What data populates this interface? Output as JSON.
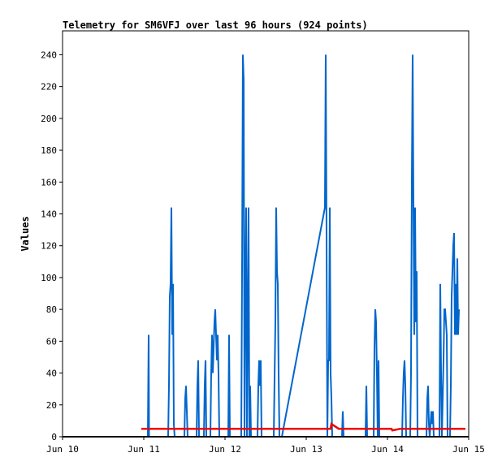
{
  "chart_data": {
    "type": "line",
    "title": "Telemetry for SM6VFJ over last 96 hours (924 points)",
    "xlabel": "",
    "ylabel": "Values",
    "grid": false,
    "legend": "none",
    "x_domain": [
      0,
      5
    ],
    "ylim": [
      0,
      255
    ],
    "x_ticks": [
      {
        "x": 0,
        "label": "Jun 10"
      },
      {
        "x": 1,
        "label": "Jun 11"
      },
      {
        "x": 2,
        "label": "Jun 12"
      },
      {
        "x": 3,
        "label": "Jun 13"
      },
      {
        "x": 4,
        "label": "Jun 14"
      },
      {
        "x": 5,
        "label": "Jun 15"
      }
    ],
    "y_ticks": [
      0,
      20,
      40,
      60,
      80,
      100,
      120,
      140,
      160,
      180,
      200,
      220,
      240
    ],
    "series": [
      {
        "color": "#0066cc",
        "points": [
          [
            1.0,
            0
          ],
          [
            1.05,
            0
          ],
          [
            1.06,
            64
          ],
          [
            1.065,
            0
          ],
          [
            1.3,
            0
          ],
          [
            1.31,
            32
          ],
          [
            1.32,
            88
          ],
          [
            1.33,
            96
          ],
          [
            1.34,
            144
          ],
          [
            1.35,
            64
          ],
          [
            1.36,
            96
          ],
          [
            1.37,
            8
          ],
          [
            1.38,
            0
          ],
          [
            1.5,
            0
          ],
          [
            1.51,
            24
          ],
          [
            1.52,
            32
          ],
          [
            1.53,
            16
          ],
          [
            1.54,
            0
          ],
          [
            1.65,
            0
          ],
          [
            1.66,
            32
          ],
          [
            1.67,
            48
          ],
          [
            1.68,
            0
          ],
          [
            1.74,
            0
          ],
          [
            1.75,
            32
          ],
          [
            1.76,
            48
          ],
          [
            1.77,
            0
          ],
          [
            1.82,
            0
          ],
          [
            1.83,
            40
          ],
          [
            1.84,
            64
          ],
          [
            1.85,
            40
          ],
          [
            1.86,
            56
          ],
          [
            1.87,
            72
          ],
          [
            1.88,
            80
          ],
          [
            1.89,
            64
          ],
          [
            1.9,
            48
          ],
          [
            1.91,
            64
          ],
          [
            1.92,
            40
          ],
          [
            1.93,
            0
          ],
          [
            2.04,
            0
          ],
          [
            2.05,
            64
          ],
          [
            2.06,
            0
          ],
          [
            2.2,
            0
          ],
          [
            2.21,
            104
          ],
          [
            2.22,
            240
          ],
          [
            2.23,
            224
          ],
          [
            2.24,
            0
          ],
          [
            2.25,
            96
          ],
          [
            2.26,
            144
          ],
          [
            2.27,
            0
          ],
          [
            2.28,
            72
          ],
          [
            2.29,
            144
          ],
          [
            2.3,
            0
          ],
          [
            2.31,
            32
          ],
          [
            2.32,
            0
          ],
          [
            2.4,
            0
          ],
          [
            2.41,
            32
          ],
          [
            2.42,
            48
          ],
          [
            2.43,
            32
          ],
          [
            2.44,
            48
          ],
          [
            2.45,
            0
          ],
          [
            2.6,
            0
          ],
          [
            2.62,
            72
          ],
          [
            2.63,
            144
          ],
          [
            2.64,
            104
          ],
          [
            2.65,
            96
          ],
          [
            2.66,
            40
          ],
          [
            2.67,
            0
          ],
          [
            2.7,
            0
          ],
          [
            3.23,
            144
          ],
          [
            3.24,
            240
          ],
          [
            3.25,
            128
          ],
          [
            3.26,
            0
          ],
          [
            3.27,
            48
          ],
          [
            3.28,
            48
          ],
          [
            3.29,
            144
          ],
          [
            3.3,
            40
          ],
          [
            3.31,
            24
          ],
          [
            3.32,
            0
          ],
          [
            3.44,
            0
          ],
          [
            3.45,
            16
          ],
          [
            3.46,
            0
          ],
          [
            3.73,
            0
          ],
          [
            3.74,
            32
          ],
          [
            3.75,
            0
          ],
          [
            3.83,
            0
          ],
          [
            3.84,
            56
          ],
          [
            3.85,
            80
          ],
          [
            3.86,
            72
          ],
          [
            3.87,
            40
          ],
          [
            3.88,
            0
          ],
          [
            3.89,
            48
          ],
          [
            3.9,
            0
          ],
          [
            4.18,
            0
          ],
          [
            4.19,
            24
          ],
          [
            4.2,
            40
          ],
          [
            4.21,
            48
          ],
          [
            4.22,
            32
          ],
          [
            4.23,
            0
          ],
          [
            4.28,
            0
          ],
          [
            4.29,
            40
          ],
          [
            4.3,
            160
          ],
          [
            4.31,
            240
          ],
          [
            4.32,
            144
          ],
          [
            4.33,
            64
          ],
          [
            4.34,
            144
          ],
          [
            4.35,
            72
          ],
          [
            4.36,
            104
          ],
          [
            4.37,
            0
          ],
          [
            4.48,
            0
          ],
          [
            4.49,
            24
          ],
          [
            4.5,
            32
          ],
          [
            4.51,
            8
          ],
          [
            4.52,
            0
          ],
          [
            4.54,
            16
          ],
          [
            4.55,
            8
          ],
          [
            4.56,
            16
          ],
          [
            4.57,
            0
          ],
          [
            4.64,
            0
          ],
          [
            4.65,
            96
          ],
          [
            4.66,
            40
          ],
          [
            4.67,
            0
          ],
          [
            4.69,
            48
          ],
          [
            4.7,
            80
          ],
          [
            4.71,
            80
          ],
          [
            4.72,
            72
          ],
          [
            4.73,
            64
          ],
          [
            4.74,
            0
          ],
          [
            4.77,
            0
          ],
          [
            4.78,
            32
          ],
          [
            4.79,
            88
          ],
          [
            4.8,
            104
          ],
          [
            4.81,
            120
          ],
          [
            4.82,
            128
          ],
          [
            4.83,
            64
          ],
          [
            4.84,
            96
          ],
          [
            4.85,
            64
          ],
          [
            4.86,
            112
          ],
          [
            4.87,
            64
          ],
          [
            4.88,
            80
          ]
        ]
      },
      {
        "color": "#ee0000",
        "points": [
          [
            0.97,
            5
          ],
          [
            3.3,
            5
          ],
          [
            3.31,
            8
          ],
          [
            3.4,
            5
          ],
          [
            4.05,
            5
          ],
          [
            4.06,
            4
          ],
          [
            4.16,
            5
          ],
          [
            4.96,
            5
          ]
        ]
      },
      {
        "color": "#000000",
        "points": [
          [
            0.0,
            0
          ],
          [
            5.0,
            0
          ]
        ]
      }
    ]
  }
}
